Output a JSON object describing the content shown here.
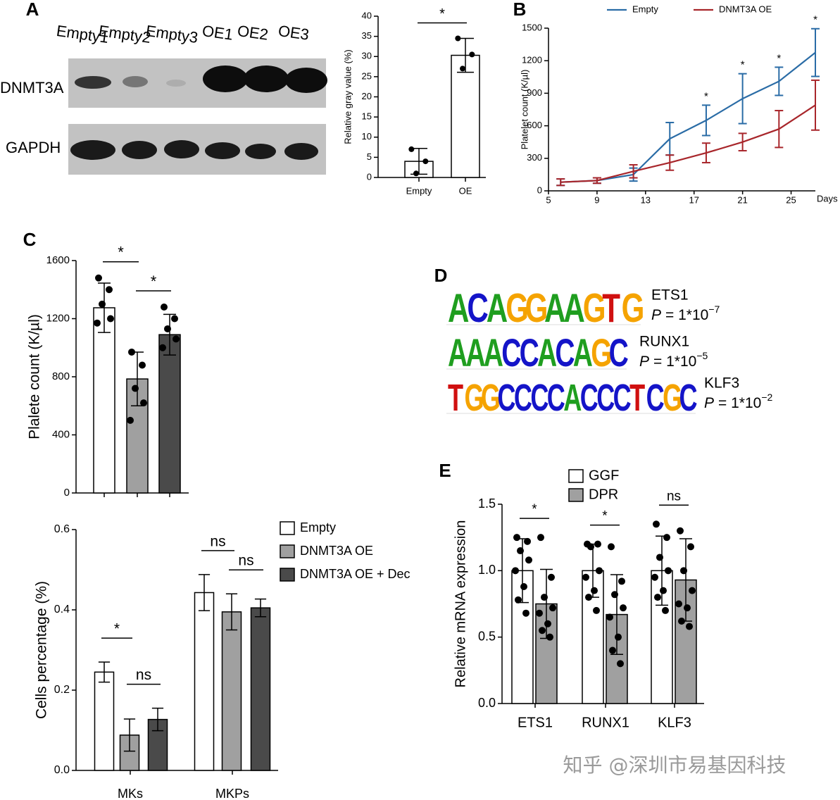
{
  "panel_labels": [
    "A",
    "B",
    "C",
    "D",
    "E"
  ],
  "blot": {
    "lanes": [
      "Empty1",
      "Empty2",
      "Empty3",
      "OE1",
      "OE2",
      "OE3"
    ],
    "rows": [
      "DNMT3A",
      "GAPDH"
    ]
  },
  "motifs": [
    {
      "name": "ETS1",
      "sequence": "ACAGGAAGTG",
      "p_label": "P",
      "p_value": "= 1*10",
      "p_exponent": "−7"
    },
    {
      "name": "RUNX1",
      "sequence": "AAACCACAGC",
      "p_label": "P",
      "p_value": "= 1*10",
      "p_exponent": "−5"
    },
    {
      "name": "KLF3",
      "sequence": "TGGCCCCACCCTCGC",
      "p_label": "P",
      "p_value": "= 1*10",
      "p_exponent": "−2"
    }
  ],
  "watermark": "知乎 @深圳市易基因科技",
  "chart_data": [
    {
      "type": "bar",
      "ylabel": "Relative gray value (%)",
      "categories": [
        "Empty",
        "OE"
      ],
      "values": [
        4,
        30.3
      ],
      "errors": [
        3.2,
        4.2
      ],
      "points": [
        [
          7,
          4,
          1
        ],
        [
          34.5,
          30.5,
          27
        ]
      ],
      "colors": [
        "#ffffff",
        "#ffffff"
      ],
      "ylim": [
        0,
        40
      ],
      "yticks": [
        0,
        5,
        10,
        15,
        20,
        25,
        30,
        35,
        40
      ],
      "significance": [
        "*"
      ]
    },
    {
      "type": "line",
      "ylabel": "Platelet count (K/µl)",
      "xlabel": "Days",
      "x": [
        6,
        9,
        12,
        15,
        18,
        21,
        24,
        27
      ],
      "series": [
        {
          "name": "Empty",
          "color": "#2a6ca6",
          "values": [
            80,
            95,
            150,
            480,
            650,
            850,
            1010,
            1275
          ],
          "errors": [
            30,
            25,
            60,
            150,
            140,
            230,
            130,
            220
          ]
        },
        {
          "name": "DNMT3A OE",
          "color": "#a8262b",
          "values": [
            80,
            95,
            180,
            260,
            350,
            450,
            570,
            790
          ],
          "errors": [
            30,
            25,
            60,
            70,
            90,
            80,
            170,
            230
          ]
        }
      ],
      "significance": [
        null,
        null,
        null,
        null,
        "*",
        "*",
        "*",
        "*"
      ],
      "xlim": [
        5,
        27
      ],
      "xticks": [
        5,
        9,
        13,
        17,
        21,
        25
      ],
      "ylim": [
        0,
        1500
      ],
      "yticks": [
        0,
        300,
        600,
        900,
        1200,
        1500
      ]
    },
    {
      "type": "bar",
      "ylabel": "Plalete count (K/µl)",
      "categories": [
        null,
        null,
        null
      ],
      "values": [
        1275,
        785,
        1090
      ],
      "errors": [
        170,
        185,
        140
      ],
      "points": [
        [
          1480,
          1400,
          1300,
          1200,
          1170
        ],
        [
          970,
          880,
          720,
          620,
          500
        ],
        [
          1280,
          1200,
          1130,
          1060,
          1000
        ]
      ],
      "colors": [
        "#ffffff",
        "#a0a0a0",
        "#4a4a4a"
      ],
      "ylim": [
        0,
        1600
      ],
      "yticks": [
        0,
        400,
        800,
        1200,
        1600
      ],
      "significance": [
        "*",
        "*"
      ]
    },
    {
      "type": "bar",
      "ylabel": "Cells percentage (%)",
      "categories": [
        "MKs",
        "MKPs"
      ],
      "series": [
        {
          "name": "Empty",
          "color": "#ffffff",
          "values": [
            0.245,
            0.443
          ],
          "errors": [
            0.025,
            0.045
          ]
        },
        {
          "name": "DNMT3A OE",
          "color": "#a0a0a0",
          "values": [
            0.088,
            0.395
          ],
          "errors": [
            0.04,
            0.045
          ]
        },
        {
          "name": "DNMT3A OE + Dec",
          "color": "#4a4a4a",
          "values": [
            0.127,
            0.405
          ],
          "errors": [
            0.028,
            0.022
          ]
        }
      ],
      "ylim": [
        0,
        0.6
      ],
      "yticks": [
        {
          "value": 0,
          "label": "0.0"
        },
        0.2,
        0.4,
        0.6
      ],
      "significance": [
        [
          "*",
          "ns"
        ],
        [
          "ns",
          "ns"
        ]
      ]
    },
    {
      "type": "bar",
      "ylabel": "Relative mRNA expression",
      "categories": [
        "ETS1",
        "RUNX1",
        "KLF3"
      ],
      "series": [
        {
          "name": "GGF",
          "color": "#ffffff",
          "values": [
            1,
            1,
            1
          ],
          "errors": [
            0.24,
            0.2,
            0.26
          ],
          "points": [
            [
              1.25,
              1.22,
              1.15,
              1.08,
              1.0,
              0.88,
              0.78,
              0.68
            ],
            [
              1.2,
              1.2,
              1.18,
              1.0,
              0.95,
              0.85,
              0.8,
              0.7
            ],
            [
              1.35,
              1.25,
              1.1,
              1.0,
              0.95,
              0.85,
              0.8,
              0.7
            ]
          ]
        },
        {
          "name": "DPR",
          "color": "#a0a0a0",
          "values": [
            0.75,
            0.67,
            0.93
          ],
          "errors": [
            0.26,
            0.3,
            0.31
          ],
          "points": [
            [
              1.25,
              0.95,
              0.8,
              0.72,
              0.68,
              0.6,
              0.55,
              0.5
            ],
            [
              1.18,
              0.92,
              0.82,
              0.72,
              0.65,
              0.5,
              0.4,
              0.3
            ],
            [
              1.3,
              1.18,
              1.0,
              0.85,
              0.75,
              0.72,
              0.62,
              0.58
            ]
          ]
        }
      ],
      "ylim": [
        0,
        1.5
      ],
      "yticks": [
        {
          "value": 0,
          "label": "0.0"
        },
        {
          "value": 0.5,
          "label": "0.5"
        },
        {
          "value": 1,
          "label": "1.0"
        },
        {
          "value": 1.5,
          "label": "1.5"
        }
      ],
      "significance": [
        [
          "*"
        ],
        [
          "*"
        ],
        [
          "ns"
        ]
      ]
    }
  ]
}
